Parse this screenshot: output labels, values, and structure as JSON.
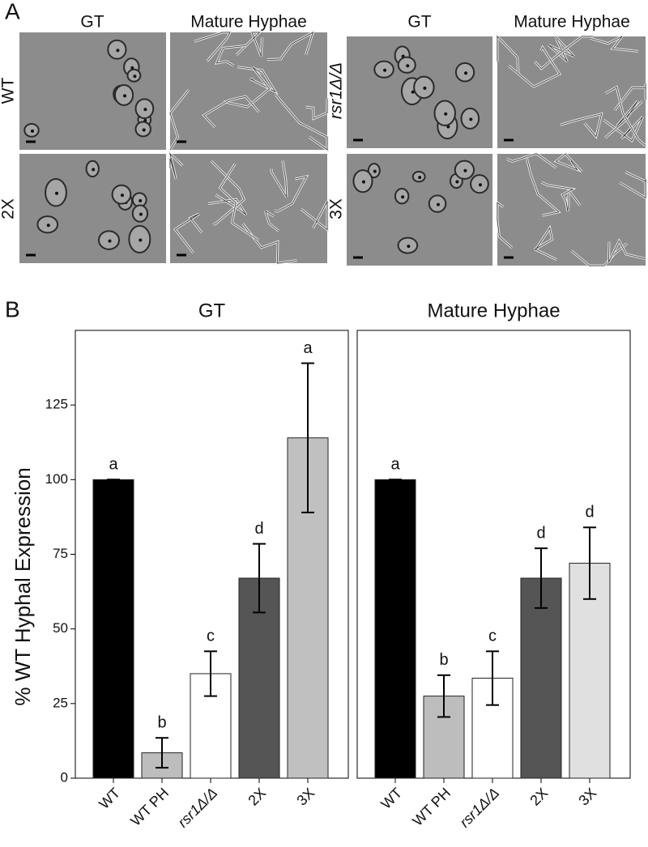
{
  "figure": {
    "panel_a": {
      "label": "A",
      "headers": [
        "GT",
        "Mature Hyphae",
        "GT",
        "Mature Hyphae"
      ],
      "rows": [
        "WT",
        "2X",
        "rsr1Δ/Δ",
        "3X"
      ]
    },
    "panel_b_label": "B"
  },
  "chart_data": [
    {
      "type": "bar",
      "title": "GT",
      "y_label": "% WT  Hyphal Expression",
      "categories": [
        "WT",
        "WT PH",
        "rsr1Δ/Δ",
        "2X",
        "3X"
      ],
      "values": [
        100,
        8.5,
        35,
        67,
        114
      ],
      "errors": [
        0,
        5,
        7.5,
        11.5,
        25
      ],
      "annotations": [
        "a",
        "b",
        "c",
        "d",
        "a"
      ],
      "colors": [
        "#000000",
        "#bdbdbd",
        "#ffffff",
        "#555555",
        "#c0c0c0"
      ],
      "ylim": [
        0,
        150
      ],
      "yticks": [
        0,
        25,
        50,
        75,
        100,
        125
      ]
    },
    {
      "type": "bar",
      "title": "Mature Hyphae",
      "categories": [
        "WT",
        "WT PH",
        "rsr1Δ/Δ",
        "2X",
        "3X"
      ],
      "values": [
        100,
        27.5,
        33.5,
        67,
        72
      ],
      "errors": [
        0,
        7,
        9,
        10,
        12
      ],
      "annotations": [
        "a",
        "b",
        "c",
        "d",
        "d"
      ],
      "colors": [
        "#000000",
        "#bdbdbd",
        "#ffffff",
        "#555555",
        "#e0e0e0"
      ],
      "ylim": [
        0,
        150
      ]
    }
  ]
}
